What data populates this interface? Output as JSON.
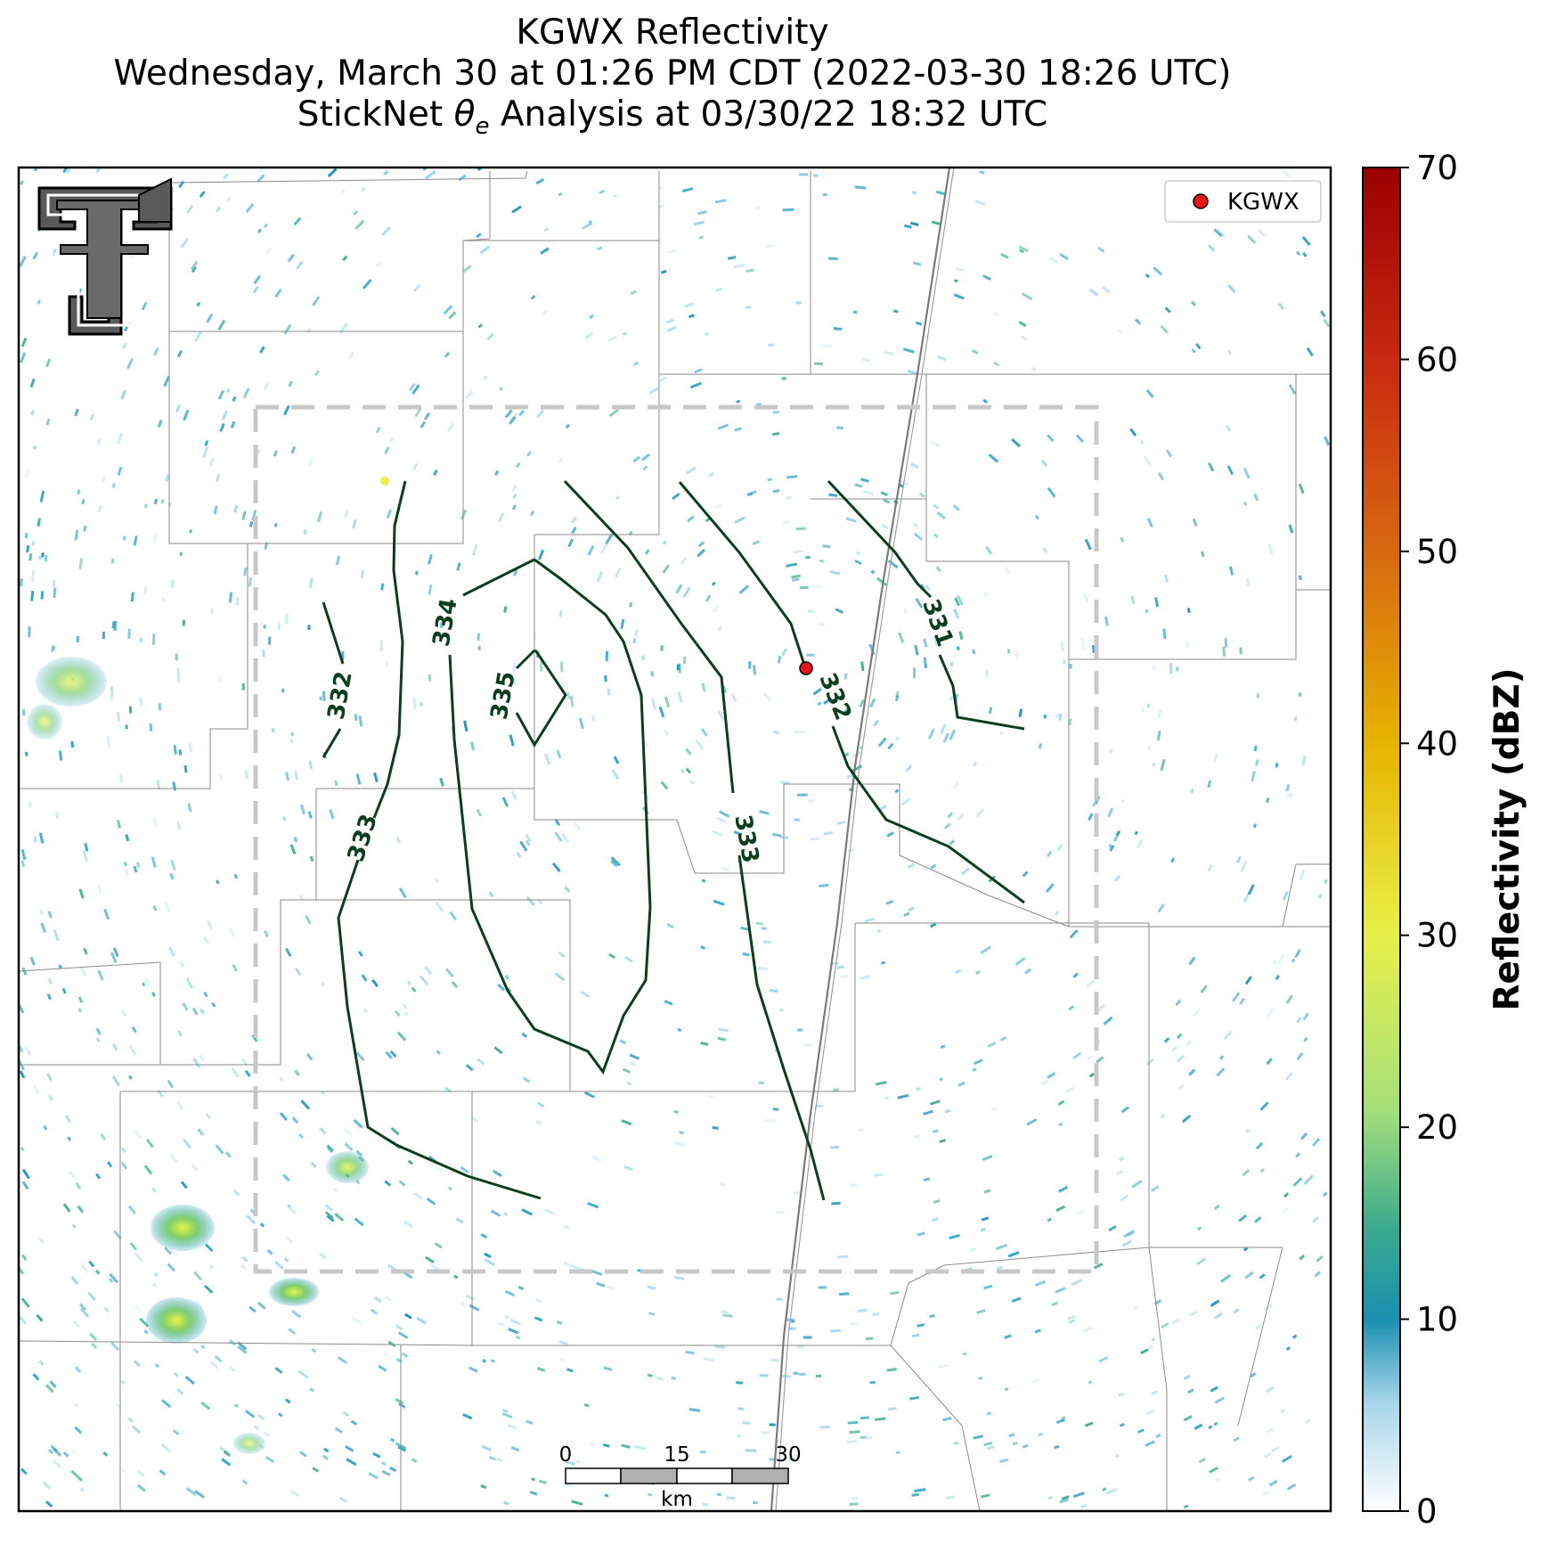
{
  "title": {
    "line1": "KGWX Reflectivity",
    "line2": "Wednesday, March 30 at 01:26 PM CDT (2022-03-30 18:26 UTC)",
    "line3_prefix": "StickNet ",
    "line3_symbol": "θ",
    "line3_subscript": "e",
    "line3_suffix": " Analysis at 03/30/22 18:32 UTC"
  },
  "legend": {
    "label": "KGWX",
    "marker_color": "#e8141a"
  },
  "colorbar": {
    "label": "Reflectivity (dBZ)",
    "ticks": [
      "0",
      "10",
      "20",
      "30",
      "40",
      "50",
      "60",
      "70"
    ],
    "min": 0,
    "max": 70,
    "colors": [
      "#ffffff",
      "#a9d6ea",
      "#1a8fb0",
      "#3aaa8e",
      "#a6e07a",
      "#e8f048",
      "#e6b400",
      "#d86a10",
      "#c82810",
      "#9a0000"
    ]
  },
  "scale_bar": {
    "ticks": [
      "0",
      "15",
      "30"
    ],
    "unit": "km"
  },
  "contours": {
    "line_color": "#0c3d1f",
    "labels": [
      "331",
      "332",
      "332",
      "333",
      "333",
      "334",
      "335"
    ]
  },
  "logo": {
    "name": "Texas Tech Double T"
  },
  "colors": {
    "county_lines": "#8a8a8a",
    "analysis_box": "#c8c8c8",
    "highway": "#7a7a7a",
    "echo_base": "#2aa0c0"
  }
}
